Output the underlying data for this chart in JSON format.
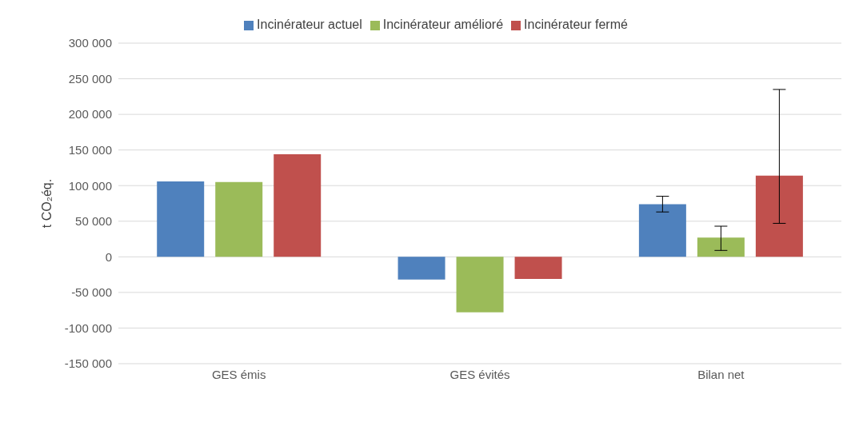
{
  "chart_data": {
    "type": "bar",
    "ylabel": "t CO₂éq.",
    "categories": [
      "GES émis",
      "GES évités",
      "Bilan net"
    ],
    "series": [
      {
        "name": "Incinérateur actuel",
        "color": "#4f81bd",
        "values": [
          106000,
          -32000,
          74000
        ],
        "errors": [
          null,
          null,
          [
            63000,
            85000
          ]
        ]
      },
      {
        "name": "Incinérateur amélioré",
        "color": "#9bbb59",
        "values": [
          105000,
          -78000,
          27000
        ],
        "errors": [
          null,
          null,
          [
            9000,
            43000
          ]
        ]
      },
      {
        "name": "Incinérateur fermé",
        "color": "#c0504d",
        "values": [
          144000,
          -31000,
          114000
        ],
        "errors": [
          null,
          null,
          [
            47000,
            235000
          ]
        ]
      }
    ],
    "ylim": [
      -150000,
      300000
    ],
    "yticks": [
      {
        "value": -150000,
        "label": "-150 000"
      },
      {
        "value": -100000,
        "label": "-100 000"
      },
      {
        "value": -50000,
        "label": "-50 000"
      },
      {
        "value": 0,
        "label": "0"
      },
      {
        "value": 50000,
        "label": "50 000"
      },
      {
        "value": 100000,
        "label": "100 000"
      },
      {
        "value": 150000,
        "label": "150 000"
      },
      {
        "value": 200000,
        "label": "200 000"
      },
      {
        "value": 250000,
        "label": "250 000"
      },
      {
        "value": 300000,
        "label": "300 000"
      }
    ],
    "grid": "y",
    "legend": "top"
  }
}
